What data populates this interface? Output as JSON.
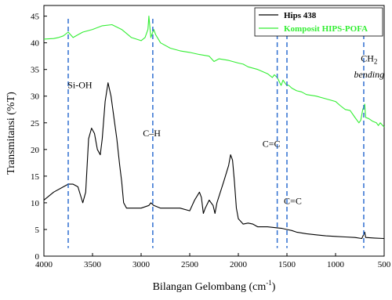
{
  "chart_data": {
    "type": "line",
    "title": "",
    "xlabel": "Bilangan Gelombang (cm",
    "xlabel_sup": "-1",
    "xlabel_end": ")",
    "ylabel": "Transmitansi (%T)",
    "xlim": [
      4000,
      500
    ],
    "ylim": [
      0,
      47
    ],
    "x_ticks": [
      4000,
      3500,
      3000,
      2500,
      2000,
      1500,
      1000,
      500
    ],
    "y_ticks": [
      0,
      5,
      10,
      15,
      20,
      25,
      30,
      35,
      40,
      45
    ],
    "grid": false,
    "legend_position": "top-right",
    "series": [
      {
        "name": "Hips 438",
        "color": "#000000",
        "points": [
          [
            4000,
            10.5
          ],
          [
            3900,
            12
          ],
          [
            3800,
            13
          ],
          [
            3750,
            13.5
          ],
          [
            3700,
            13.5
          ],
          [
            3650,
            13
          ],
          [
            3600,
            10
          ],
          [
            3570,
            12
          ],
          [
            3540,
            22
          ],
          [
            3510,
            24
          ],
          [
            3480,
            23
          ],
          [
            3450,
            20
          ],
          [
            3420,
            19
          ],
          [
            3400,
            22
          ],
          [
            3370,
            29
          ],
          [
            3340,
            32.5
          ],
          [
            3310,
            30
          ],
          [
            3280,
            26
          ],
          [
            3250,
            22
          ],
          [
            3220,
            17
          ],
          [
            3200,
            14
          ],
          [
            3180,
            10
          ],
          [
            3150,
            9
          ],
          [
            3000,
            9
          ],
          [
            2920,
            9.5
          ],
          [
            2900,
            10
          ],
          [
            2870,
            9.5
          ],
          [
            2800,
            9
          ],
          [
            2600,
            9
          ],
          [
            2500,
            8.5
          ],
          [
            2450,
            10.5
          ],
          [
            2400,
            12
          ],
          [
            2380,
            11
          ],
          [
            2360,
            8
          ],
          [
            2340,
            9
          ],
          [
            2300,
            10.5
          ],
          [
            2260,
            9.5
          ],
          [
            2240,
            8
          ],
          [
            2220,
            10
          ],
          [
            2150,
            14
          ],
          [
            2100,
            17
          ],
          [
            2080,
            19
          ],
          [
            2060,
            18
          ],
          [
            2040,
            14
          ],
          [
            2020,
            9
          ],
          [
            2000,
            7
          ],
          [
            1950,
            6
          ],
          [
            1900,
            6.2
          ],
          [
            1850,
            6
          ],
          [
            1800,
            5.5
          ],
          [
            1700,
            5.5
          ],
          [
            1600,
            5.3
          ],
          [
            1550,
            5.2
          ],
          [
            1500,
            5
          ],
          [
            1450,
            4.8
          ],
          [
            1400,
            4.5
          ],
          [
            1300,
            4.2
          ],
          [
            1200,
            4
          ],
          [
            1100,
            3.8
          ],
          [
            1000,
            3.7
          ],
          [
            900,
            3.6
          ],
          [
            800,
            3.5
          ],
          [
            730,
            3.3
          ],
          [
            700,
            4.5
          ],
          [
            690,
            3.5
          ],
          [
            600,
            3.4
          ],
          [
            500,
            3.3
          ]
        ]
      },
      {
        "name": "Komposit HIPS-POFA",
        "color": "#33ee33",
        "points": [
          [
            4000,
            40.7
          ],
          [
            3900,
            40.8
          ],
          [
            3850,
            41
          ],
          [
            3800,
            41.3
          ],
          [
            3750,
            42
          ],
          [
            3700,
            41
          ],
          [
            3650,
            41.5
          ],
          [
            3600,
            42
          ],
          [
            3500,
            42.5
          ],
          [
            3400,
            43.2
          ],
          [
            3300,
            43.4
          ],
          [
            3200,
            42.5
          ],
          [
            3100,
            41
          ],
          [
            3000,
            40.4
          ],
          [
            2960,
            41
          ],
          [
            2930,
            42.5
          ],
          [
            2920,
            45
          ],
          [
            2900,
            41
          ],
          [
            2870,
            42.5
          ],
          [
            2850,
            41.5
          ],
          [
            2800,
            40
          ],
          [
            2700,
            39
          ],
          [
            2600,
            38.5
          ],
          [
            2500,
            38.2
          ],
          [
            2400,
            37.8
          ],
          [
            2300,
            37.5
          ],
          [
            2250,
            36.5
          ],
          [
            2200,
            37
          ],
          [
            2100,
            36.7
          ],
          [
            2000,
            36.2
          ],
          [
            1950,
            36
          ],
          [
            1900,
            35.5
          ],
          [
            1800,
            35
          ],
          [
            1700,
            34.2
          ],
          [
            1650,
            33.5
          ],
          [
            1630,
            34
          ],
          [
            1600,
            33.5
          ],
          [
            1560,
            32
          ],
          [
            1540,
            33
          ],
          [
            1510,
            32.2
          ],
          [
            1480,
            32
          ],
          [
            1450,
            31.5
          ],
          [
            1400,
            31
          ],
          [
            1350,
            30.8
          ],
          [
            1300,
            30.3
          ],
          [
            1200,
            30
          ],
          [
            1100,
            29.5
          ],
          [
            1000,
            29
          ],
          [
            950,
            28.2
          ],
          [
            900,
            27.5
          ],
          [
            850,
            27.3
          ],
          [
            800,
            26
          ],
          [
            760,
            25
          ],
          [
            740,
            25.5
          ],
          [
            720,
            27.5
          ],
          [
            700,
            28.5
          ],
          [
            690,
            26
          ],
          [
            660,
            25.8
          ],
          [
            620,
            25.3
          ],
          [
            580,
            25
          ],
          [
            560,
            24.5
          ],
          [
            540,
            25
          ],
          [
            500,
            24.2
          ]
        ]
      }
    ],
    "markers": [
      3750,
      2880,
      1600,
      1500,
      710
    ],
    "annotations": [
      {
        "id": "si-oh",
        "text": "Si-OH",
        "x": 3630,
        "y": 31.5
      },
      {
        "id": "c-h",
        "text": "C–H",
        "x": 2890,
        "y": 22.5
      },
      {
        "id": "c-c-1",
        "text": "C=C",
        "x": 1660,
        "y": 20.5
      },
      {
        "id": "c-c-2",
        "text": "C=C",
        "x": 1440,
        "y": 9.8
      }
    ],
    "ch2_annotation": {
      "main": "CH",
      "sub": "2",
      "sub_label": "bending",
      "x": 655
    }
  }
}
